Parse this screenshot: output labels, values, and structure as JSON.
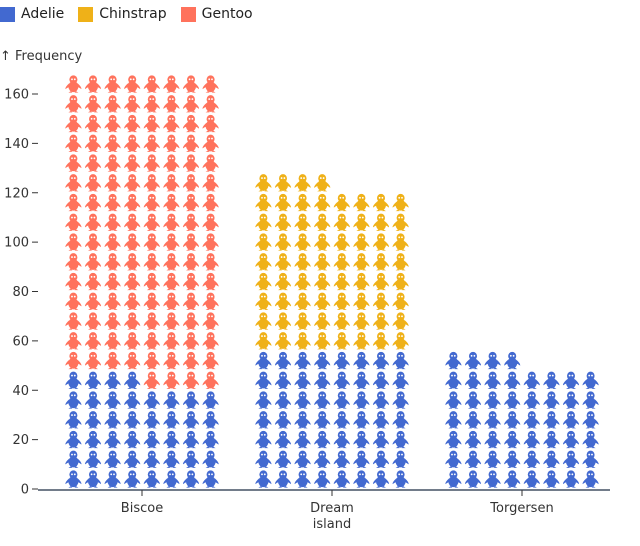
{
  "chart_data": {
    "type": "waffle",
    "units_per_row": 8,
    "categories": [
      "Biscoe",
      "Dream\nisland",
      "Torgersen"
    ],
    "series": [
      {
        "name": "Adelie",
        "color": "#4269d0",
        "values": [
          44,
          56,
          52
        ]
      },
      {
        "name": "Chinstrap",
        "color": "#efb118",
        "values": [
          0,
          68,
          0
        ]
      },
      {
        "name": "Gentoo",
        "color": "#ff725c",
        "values": [
          124,
          0,
          0
        ]
      }
    ],
    "ylabel": "↑ Frequency",
    "ylim": [
      0,
      168
    ],
    "yticks": [
      0,
      20,
      40,
      60,
      80,
      100,
      120,
      140,
      160
    ],
    "legend": "top-left",
    "icon": "penguin-icon",
    "grid": false
  }
}
